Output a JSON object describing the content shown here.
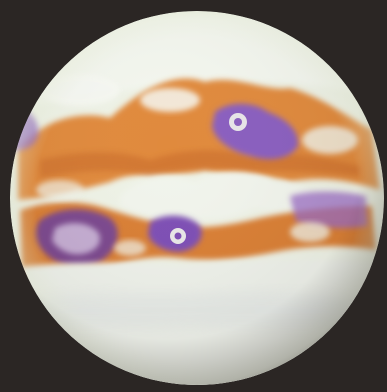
{
  "image": {
    "subject": "planet-globe",
    "colors": {
      "background": "#2b2624",
      "cloud_white": "#f1f4ec",
      "cloud_shadow": "#d9dde0",
      "land_orange": "#e08a3c",
      "land_orange_deep": "#c86a2a",
      "land_tan": "#d9a667",
      "basin_violet": "#8a5fbf",
      "basin_deep": "#6c3f9e",
      "limb_tint": "#e8efd6"
    }
  }
}
